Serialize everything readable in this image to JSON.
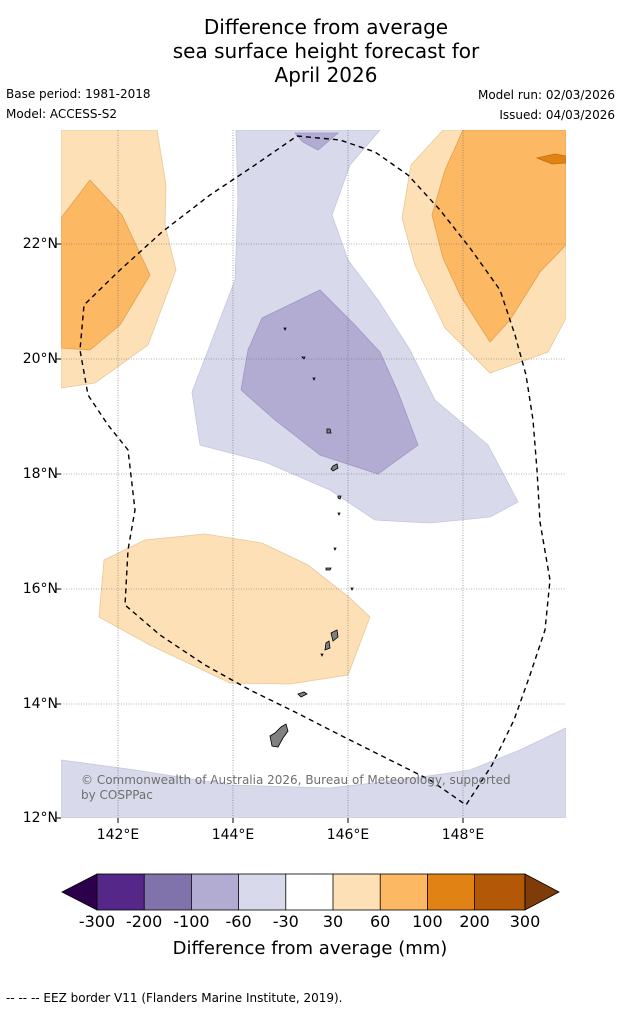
{
  "title": {
    "line1": "Difference from average",
    "line2": "sea surface height forecast for",
    "line3": "April 2026"
  },
  "meta": {
    "base_period": "Base period: 1981-2018",
    "model": "Model: ACCESS-S2",
    "model_run": "Model run: 02/03/2026",
    "issued": "Issued: 04/03/2026"
  },
  "map": {
    "lon_range": [
      141,
      149.8
    ],
    "lat_range": [
      12,
      24
    ],
    "lat_ticks": [
      "22°N",
      "20°N",
      "18°N",
      "16°N",
      "14°N",
      "12°N"
    ],
    "lon_ticks": [
      "142°E",
      "144°E",
      "146°E",
      "148°E"
    ],
    "copyright": "© Commonwealth of Australia 2026, Bureau of Meteorology, supported by COSPPac"
  },
  "colorbar": {
    "title": "Difference from average (mm)",
    "labels": [
      "-300",
      "-200",
      "-100",
      "-60",
      "-30",
      "30",
      "60",
      "100",
      "200",
      "300"
    ],
    "colors": [
      "#2d004b",
      "#542788",
      "#8073ac",
      "#b2abd2",
      "#d8daeb",
      "#ffffff",
      "#fee0b6",
      "#fdb863",
      "#e08214",
      "#b35806",
      "#7f3b08"
    ]
  },
  "footnote": "--  --  -- EEZ border V11 (Flanders Marine Institute, 2019)."
}
